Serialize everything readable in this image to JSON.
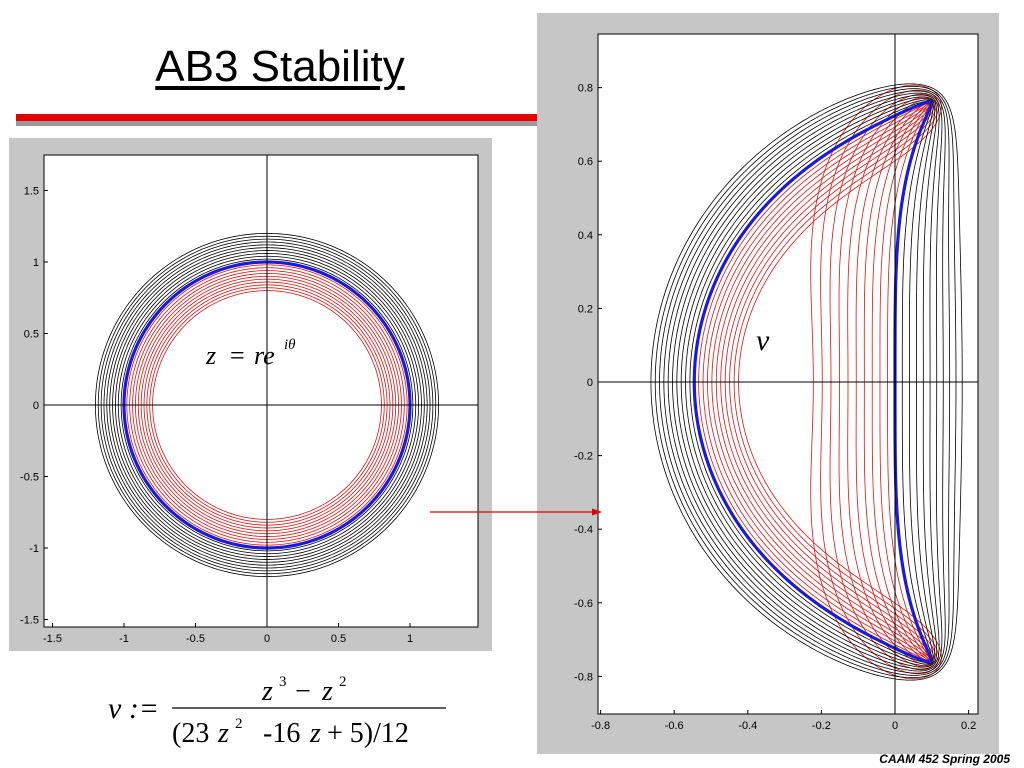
{
  "slide": {
    "title": "AB3 Stability",
    "footer": "CAAM 452 Spring 2005"
  },
  "colors": {
    "title_rule": "#e60000",
    "unit_curve": "#1a1adc",
    "inner_curves": "#e01010",
    "outer_curves": "#000000",
    "frame": "#c6c6c6",
    "arrow": "#e00000"
  },
  "left_panel": {
    "label_z": "z",
    "label_eq": "=",
    "label_r": "re",
    "label_exp": "iθ",
    "xticks": [
      "-1.5",
      "-1",
      "-0.5",
      "0",
      "0.5",
      "1"
    ],
    "yticks": [
      "1.5",
      "1",
      "0.5",
      "0",
      "-0.5",
      "-1",
      "-1.5"
    ]
  },
  "right_panel": {
    "label_nu": "ν",
    "xticks": [
      "-0.8",
      "-0.6",
      "-0.4",
      "-0.2",
      "0",
      "0.2"
    ],
    "yticks": [
      "0.8",
      "0.6",
      "0.4",
      "0.2",
      "0",
      "-0.2",
      "-0.4",
      "-0.6",
      "-0.8"
    ]
  },
  "formula": {
    "lhs": "ν :=",
    "num_a": "z",
    "num_a_exp": "3",
    "num_op": "−",
    "num_b": "z",
    "num_b_exp": "2",
    "den_1": "(23",
    "den_z1": "z",
    "den_z1_exp": "2",
    "den_2": "-16",
    "den_z2": "z",
    "den_3": "+  5)/12"
  },
  "chart_data": [
    {
      "type": "line",
      "title": "",
      "description_visible": "Concentric circles |z| = r around the unit circle (blue), r < 1 in red, r > 1 in black",
      "xlim": [
        -1.55,
        1.5
      ],
      "ylim": [
        -1.55,
        1.7
      ],
      "series": [
        {
          "radius": 1.0,
          "color": "#1a1adc"
        },
        {
          "radii": [
            0.8,
            0.82,
            0.84,
            0.86,
            0.88,
            0.9,
            0.92,
            0.94,
            0.96,
            0.98
          ],
          "color": "#e01010"
        },
        {
          "radii": [
            1.02,
            1.04,
            1.06,
            1.08,
            1.1,
            1.12,
            1.14,
            1.16,
            1.18,
            1.2
          ],
          "color": "#000000"
        }
      ]
    },
    {
      "type": "line",
      "title": "",
      "xlim": [
        -0.82,
        0.22
      ],
      "ylim": [
        -0.9,
        0.95
      ],
      "mapping": "v = (z^3 - z^2) / ((23 z^2 - 16 z + 5) / 12), z = r e^{iθ}",
      "series": [
        {
          "radius": 1.0,
          "color": "#1a1adc"
        },
        {
          "radii": [
            0.8,
            0.82,
            0.84,
            0.86,
            0.88,
            0.9,
            0.92,
            0.94,
            0.96,
            0.98
          ],
          "color": "#e01010"
        },
        {
          "radii": [
            1.02,
            1.04,
            1.06,
            1.08,
            1.1,
            1.12,
            1.14,
            1.16,
            1.18,
            1.2
          ],
          "color": "#000000"
        }
      ]
    }
  ]
}
